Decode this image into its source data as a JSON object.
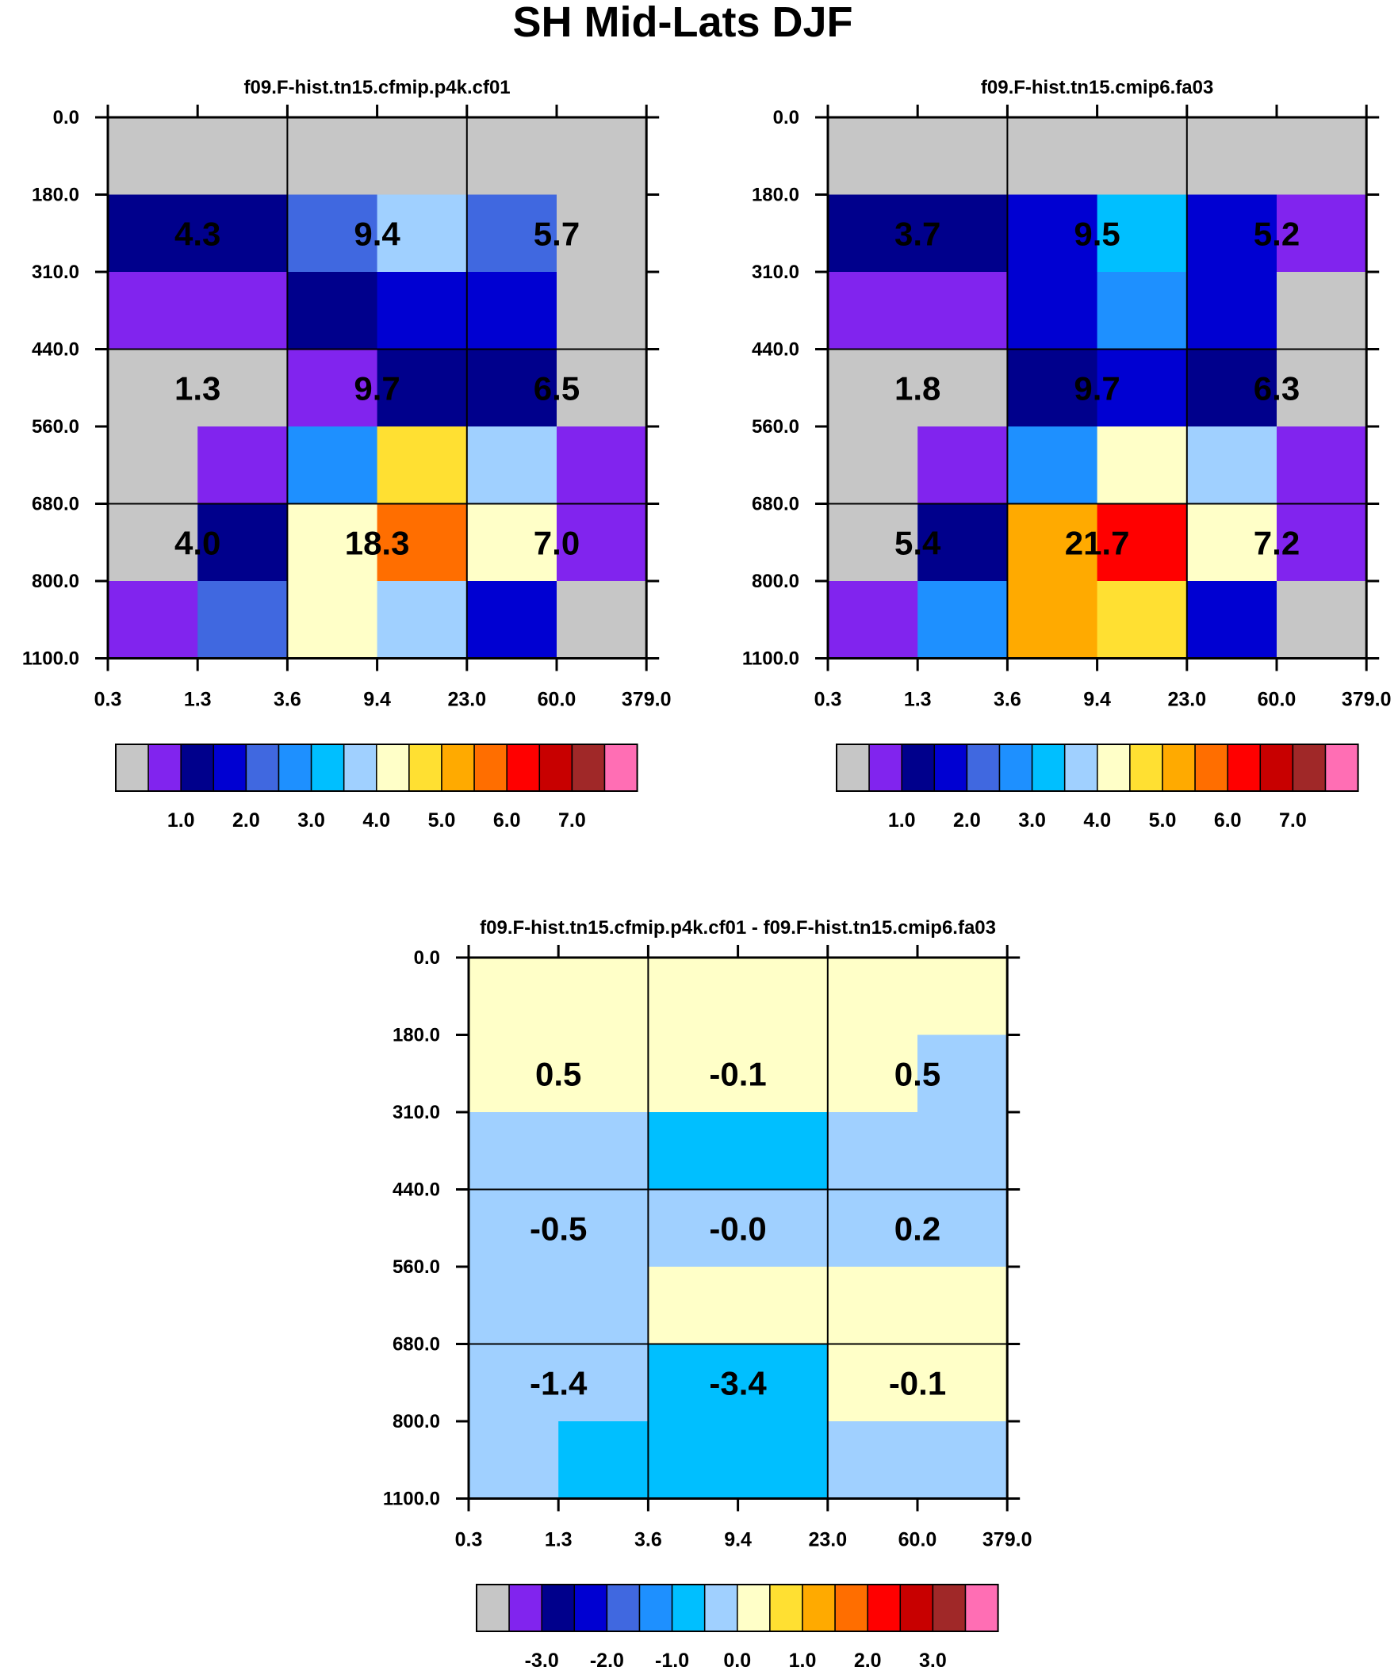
{
  "title": "SH Mid-Lats DJF",
  "palette": [
    "#c6c6c6",
    "#8124ee",
    "#00008c",
    "#0000d2",
    "#4068e0",
    "#1e90ff",
    "#00bfff",
    "#a0d0ff",
    "#ffffc8",
    "#ffe032",
    "#ffaa00",
    "#ff6e00",
    "#ff0000",
    "#c80000",
    "#a02828",
    "#ff6eb4"
  ],
  "chart_data": [
    {
      "type": "heatmap",
      "title": "f09.F-hist.tn15.cfmip.p4k.cf01",
      "x_ticks": [
        "0.3",
        "1.3",
        "3.6",
        "9.4",
        "23.0",
        "60.0",
        "379.0"
      ],
      "y_ticks": [
        "0.0",
        "180.0",
        "310.0",
        "440.0",
        "560.0",
        "680.0",
        "800.0",
        "1100.0"
      ],
      "cells": [
        [
          0,
          0,
          0,
          0,
          0,
          0
        ],
        [
          2,
          2,
          4,
          7,
          4,
          0
        ],
        [
          1,
          1,
          2,
          3,
          3,
          0
        ],
        [
          0,
          0,
          1,
          2,
          2,
          0
        ],
        [
          0,
          1,
          5,
          9,
          7,
          1
        ],
        [
          0,
          2,
          8,
          11,
          8,
          1
        ],
        [
          1,
          4,
          8,
          7,
          3,
          0
        ]
      ],
      "box_values": [
        [
          "4.3",
          "9.4",
          "5.7"
        ],
        [
          "1.3",
          "9.7",
          "6.5"
        ],
        [
          "4.0",
          "18.3",
          "7.0"
        ]
      ],
      "colorbar_labels": [
        "1.0",
        "2.0",
        "3.0",
        "4.0",
        "5.0",
        "6.0",
        "7.0"
      ]
    },
    {
      "type": "heatmap",
      "title": "f09.F-hist.tn15.cmip6.fa03",
      "x_ticks": [
        "0.3",
        "1.3",
        "3.6",
        "9.4",
        "23.0",
        "60.0",
        "379.0"
      ],
      "y_ticks": [
        "0.0",
        "180.0",
        "310.0",
        "440.0",
        "560.0",
        "680.0",
        "800.0",
        "1100.0"
      ],
      "cells": [
        [
          0,
          0,
          0,
          0,
          0,
          0
        ],
        [
          2,
          2,
          3,
          6,
          3,
          1
        ],
        [
          1,
          1,
          3,
          5,
          3,
          0
        ],
        [
          0,
          0,
          2,
          3,
          2,
          0
        ],
        [
          0,
          1,
          5,
          8,
          7,
          1
        ],
        [
          0,
          2,
          10,
          12,
          8,
          1
        ],
        [
          1,
          5,
          10,
          9,
          3,
          0
        ]
      ],
      "box_values": [
        [
          "3.7",
          "9.5",
          "5.2"
        ],
        [
          "1.8",
          "9.7",
          "6.3"
        ],
        [
          "5.4",
          "21.7",
          "7.2"
        ]
      ],
      "colorbar_labels": [
        "1.0",
        "2.0",
        "3.0",
        "4.0",
        "5.0",
        "6.0",
        "7.0"
      ]
    },
    {
      "type": "heatmap",
      "title": "f09.F-hist.tn15.cfmip.p4k.cf01 - f09.F-hist.tn15.cmip6.fa03",
      "x_ticks": [
        "0.3",
        "1.3",
        "3.6",
        "9.4",
        "23.0",
        "60.0",
        "379.0"
      ],
      "y_ticks": [
        "0.0",
        "180.0",
        "310.0",
        "440.0",
        "560.0",
        "680.0",
        "800.0",
        "1100.0"
      ],
      "cells": [
        [
          8,
          8,
          8,
          8,
          8,
          8
        ],
        [
          8,
          8,
          8,
          8,
          8,
          7
        ],
        [
          7,
          7,
          6,
          6,
          7,
          7
        ],
        [
          7,
          7,
          7,
          7,
          7,
          7
        ],
        [
          7,
          7,
          8,
          8,
          8,
          8
        ],
        [
          7,
          7,
          6,
          6,
          8,
          8
        ],
        [
          7,
          6,
          6,
          6,
          7,
          7
        ]
      ],
      "box_values": [
        [
          "0.5",
          "-0.1",
          "0.5"
        ],
        [
          "-0.5",
          "-0.0",
          "0.2"
        ],
        [
          "-1.4",
          "-3.4",
          "-0.1"
        ]
      ],
      "colorbar_labels": [
        "-3.0",
        "-2.0",
        "-1.0",
        "0.0",
        "1.0",
        "2.0",
        "3.0"
      ]
    }
  ]
}
